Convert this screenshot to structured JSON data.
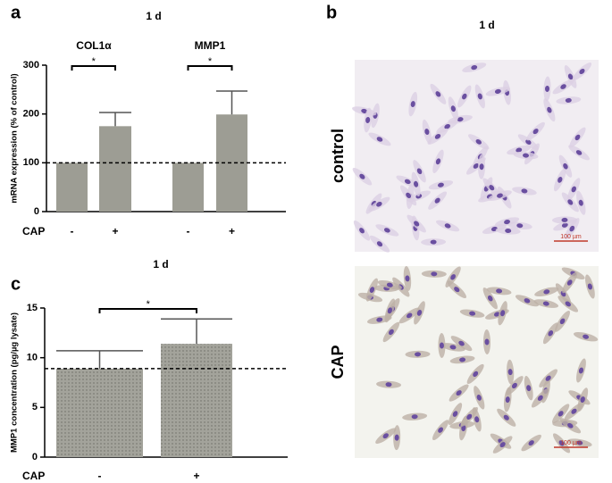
{
  "chart_data": [
    {
      "type": "bar",
      "panel_label": "a",
      "title": "1 d",
      "groups": [
        "COL1α",
        "MMP1"
      ],
      "categories": [
        "-",
        "+",
        "-",
        "+"
      ],
      "values": [
        100,
        175,
        100,
        199
      ],
      "errors": [
        null,
        28,
        null,
        48
      ],
      "color": "#9d9d94",
      "ylim": [
        0,
        300
      ],
      "yticks": [
        0,
        100,
        200,
        300
      ],
      "ylabel": "mRNA expression (% of control)",
      "xlabel": "CAP",
      "reference_line": 100,
      "significance": [
        {
          "from": 0,
          "to": 1,
          "label": "*"
        },
        {
          "from": 2,
          "to": 3,
          "label": "*"
        }
      ]
    },
    {
      "type": "bar",
      "panel_label": "c",
      "title": "1 d",
      "categories": [
        "-",
        "+"
      ],
      "values": [
        8.9,
        11.4
      ],
      "errors": [
        1.8,
        2.5
      ],
      "color": "#a3a39b",
      "pattern": "dots",
      "ylim": [
        0,
        15
      ],
      "yticks": [
        0,
        5,
        10,
        15
      ],
      "ylabel": "MMP1 concentration (pg/µg lysate)",
      "xlabel": "CAP",
      "reference_line": 8.9,
      "significance": [
        {
          "from": 0,
          "to": 1,
          "label": "*"
        }
      ]
    }
  ],
  "panel_b": {
    "label": "b",
    "title": "1 d",
    "rows": [
      {
        "label": "control",
        "scale_bar": "100 µm"
      },
      {
        "label": "CAP",
        "scale_bar": "100 µm"
      }
    ]
  }
}
